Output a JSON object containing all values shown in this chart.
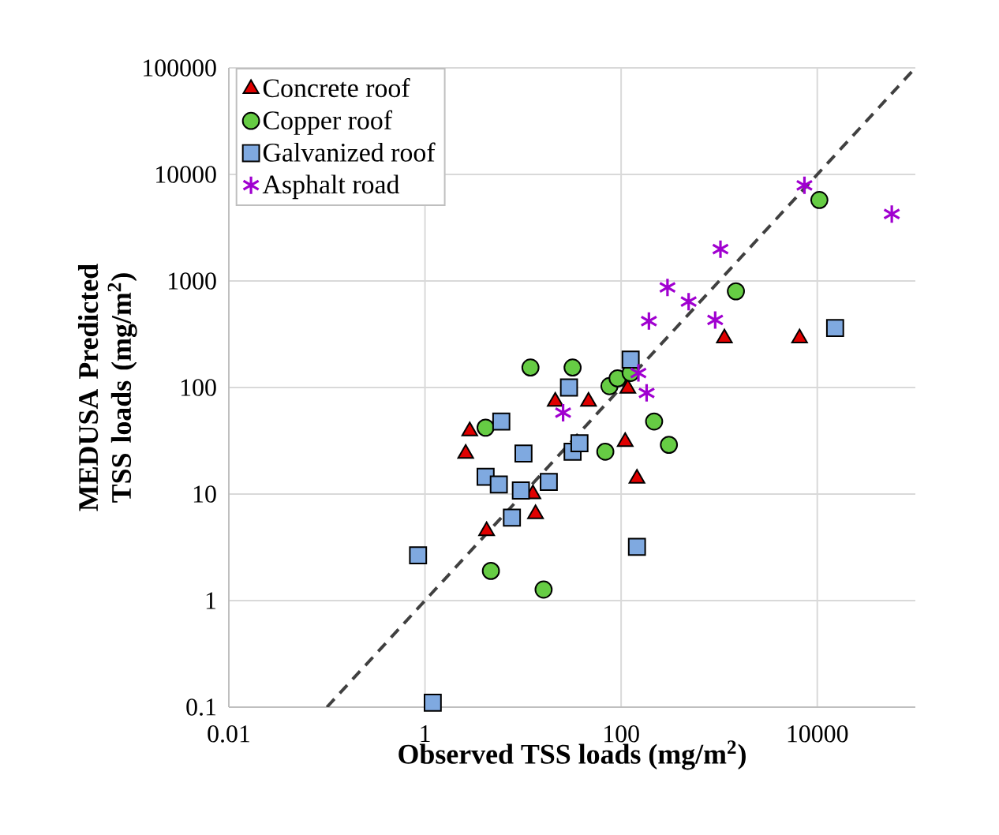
{
  "chart_data": {
    "type": "scatter",
    "xlabel": "Observed TSS loads (mg/m$^{2}$)",
    "ylabel": "MEDUSA Predicted TSS loads (mg/m$^{2}$)",
    "log": "xy",
    "xlim": [
      0.01,
      100000
    ],
    "ylim": [
      0.1,
      100000
    ],
    "xticks": [
      0.01,
      1,
      100,
      10000
    ],
    "yticks": [
      0.1,
      1,
      10,
      100,
      1000,
      10000,
      100000
    ],
    "grid": true,
    "legend": "top left",
    "series": [
      {
        "name": "Concrete roof",
        "color": "#e00000",
        "marker": "triangle",
        "x": [
          2.86,
          2.6,
          4.25,
          13.4,
          12.6,
          21.3,
          46.5,
          110,
          145,
          117,
          1130,
          6600
        ],
        "values": [
          39,
          24,
          4.5,
          6.5,
          10,
          74,
          74,
          31,
          14,
          98,
          290,
          290
        ]
      },
      {
        "name": "Copper roof",
        "color": "#66cc44",
        "marker": "circle",
        "x": [
          11.9,
          32,
          76,
          92,
          125,
          4.15,
          217,
          307,
          69,
          4.7,
          16.2,
          1480,
          10500
        ],
        "values": [
          154,
          154,
          103,
          122,
          137,
          42,
          48,
          29,
          25,
          1.9,
          1.27,
          800,
          5750
        ]
      },
      {
        "name": "Galvanized roof",
        "color": "#7fa9e0",
        "marker": "square",
        "x": [
          0.85,
          1.2,
          6,
          10.1,
          4.15,
          5.66,
          9.5,
          18.3,
          7.7,
          29.4,
          32,
          37.6,
          125,
          145,
          15200
        ],
        "values": [
          2.66,
          0.11,
          48,
          24,
          14.5,
          12.3,
          10.8,
          13,
          6,
          100,
          25,
          30,
          183,
          3.2,
          362
        ]
      },
      {
        "name": "Asphalt road",
        "color": "#a000d0",
        "marker": "cross",
        "x": [
          25.6,
          150,
          182,
          192,
          297,
          488,
          910,
          1030,
          7400,
          57500
        ],
        "values": [
          58,
          137,
          89,
          420,
          870,
          640,
          430,
          1990,
          7900,
          4250
        ]
      },
      {
        "type": "line",
        "color": "#404040",
        "marker": "none",
        "line_style": "dashed",
        "x": [
          0.1,
          100000
        ],
        "values": [
          0.1,
          100000
        ]
      }
    ]
  }
}
